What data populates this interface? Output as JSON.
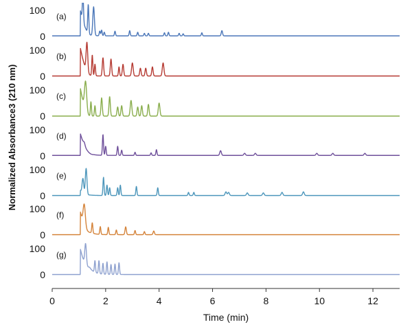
{
  "chart_data": {
    "type": "line",
    "xlabel": "Time (min)",
    "ylabel": "Normalized Absorbance3 (210 nm)",
    "xlim": [
      0,
      13
    ],
    "xticks": [
      0,
      2,
      4,
      6,
      8,
      10,
      12
    ],
    "ylim": [
      0,
      100
    ],
    "yticks": [
      0,
      100
    ],
    "series": [
      {
        "name": "(a)",
        "color": "#4a76b8",
        "baseline": 2,
        "front": {
          "start": 1.05,
          "rise": 100,
          "end": 1.5,
          "tail": 2
        },
        "peaks": [
          [
            1.15,
            110,
            0.02
          ],
          [
            1.35,
            110,
            0.02
          ],
          [
            1.55,
            110,
            0.03
          ],
          [
            1.78,
            18,
            0.02
          ],
          [
            1.85,
            22,
            0.02
          ],
          [
            1.95,
            14,
            0.02
          ],
          [
            2.35,
            18,
            0.02
          ],
          [
            2.9,
            20,
            0.02
          ],
          [
            3.2,
            14,
            0.02
          ],
          [
            3.45,
            10,
            0.02
          ],
          [
            3.6,
            10,
            0.02
          ],
          [
            4.2,
            12,
            0.02
          ],
          [
            4.35,
            14,
            0.02
          ],
          [
            4.75,
            10,
            0.02
          ],
          [
            4.9,
            8,
            0.02
          ],
          [
            5.6,
            12,
            0.02
          ],
          [
            6.35,
            20,
            0.025
          ]
        ]
      },
      {
        "name": "(b)",
        "color": "#b53a32",
        "baseline": 1,
        "front": {
          "start": 1.05,
          "rise": 110,
          "end": 1.5,
          "tail": 1
        },
        "peaks": [
          [
            1.3,
            110,
            0.03
          ],
          [
            1.5,
            80,
            0.02
          ],
          [
            1.6,
            45,
            0.02
          ],
          [
            1.9,
            70,
            0.025
          ],
          [
            2.2,
            65,
            0.025
          ],
          [
            2.5,
            35,
            0.02
          ],
          [
            2.65,
            45,
            0.025
          ],
          [
            3.0,
            50,
            0.03
          ],
          [
            3.3,
            30,
            0.025
          ],
          [
            3.5,
            30,
            0.025
          ],
          [
            3.75,
            35,
            0.025
          ],
          [
            4.15,
            50,
            0.03
          ]
        ]
      },
      {
        "name": "(c)",
        "color": "#89ad4c",
        "baseline": 0,
        "front": {
          "start": 1.05,
          "rise": 110,
          "end": 1.45,
          "tail": 0
        },
        "peaks": [
          [
            1.25,
            110,
            0.04
          ],
          [
            1.45,
            55,
            0.02
          ],
          [
            1.6,
            40,
            0.02
          ],
          [
            1.85,
            70,
            0.025
          ],
          [
            2.15,
            75,
            0.025
          ],
          [
            2.45,
            35,
            0.025
          ],
          [
            2.6,
            40,
            0.025
          ],
          [
            2.95,
            60,
            0.03
          ],
          [
            3.2,
            35,
            0.025
          ],
          [
            3.35,
            40,
            0.025
          ],
          [
            3.6,
            45,
            0.025
          ],
          [
            4.0,
            50,
            0.03
          ]
        ]
      },
      {
        "name": "(d)",
        "color": "#6e4f9a",
        "baseline": 2,
        "front": {
          "start": 1.05,
          "rise": 85,
          "end": 1.55,
          "tail": 3
        },
        "peaks": [
          [
            1.2,
            10,
            0.03
          ],
          [
            1.9,
            80,
            0.02
          ],
          [
            2.0,
            35,
            0.02
          ],
          [
            2.45,
            35,
            0.02
          ],
          [
            2.6,
            20,
            0.02
          ],
          [
            3.1,
            12,
            0.02
          ],
          [
            3.7,
            10,
            0.02
          ],
          [
            3.9,
            22,
            0.02
          ],
          [
            6.3,
            18,
            0.03
          ],
          [
            7.2,
            8,
            0.03
          ],
          [
            7.6,
            8,
            0.03
          ],
          [
            9.9,
            8,
            0.03
          ],
          [
            10.5,
            8,
            0.03
          ],
          [
            11.7,
            8,
            0.03
          ]
        ]
      },
      {
        "name": "(e)",
        "color": "#4c96bb",
        "baseline": 1,
        "front": {
          "start": 1.05,
          "rise": 20,
          "end": 1.4,
          "tail": 2
        },
        "peaks": [
          [
            1.15,
            55,
            0.03
          ],
          [
            1.27,
            100,
            0.03
          ],
          [
            1.92,
            70,
            0.02
          ],
          [
            2.05,
            40,
            0.02
          ],
          [
            2.15,
            30,
            0.02
          ],
          [
            2.45,
            30,
            0.02
          ],
          [
            2.55,
            40,
            0.02
          ],
          [
            3.15,
            35,
            0.02
          ],
          [
            3.95,
            30,
            0.02
          ],
          [
            5.1,
            12,
            0.02
          ],
          [
            5.3,
            12,
            0.02
          ],
          [
            6.5,
            14,
            0.03
          ],
          [
            6.6,
            12,
            0.03
          ],
          [
            7.3,
            10,
            0.03
          ],
          [
            7.9,
            10,
            0.03
          ],
          [
            8.6,
            12,
            0.03
          ],
          [
            9.4,
            14,
            0.03
          ]
        ]
      },
      {
        "name": "(f)",
        "color": "#d4833a",
        "baseline": 1,
        "front": {
          "start": 1.05,
          "rise": 90,
          "end": 1.45,
          "tail": 8
        },
        "peaks": [
          [
            1.2,
            80,
            0.04
          ],
          [
            1.5,
            40,
            0.02
          ],
          [
            1.8,
            30,
            0.02
          ],
          [
            2.1,
            28,
            0.02
          ],
          [
            2.4,
            18,
            0.02
          ],
          [
            2.75,
            30,
            0.025
          ],
          [
            3.1,
            16,
            0.02
          ],
          [
            3.45,
            12,
            0.02
          ],
          [
            3.8,
            14,
            0.025
          ]
        ]
      },
      {
        "name": "(g)",
        "color": "#8ea1cf",
        "baseline": 1,
        "front": {
          "start": 1.05,
          "rise": 100,
          "end": 1.4,
          "tail": 28
        },
        "peaks": [
          [
            1.25,
            80,
            0.03
          ],
          [
            1.6,
            45,
            0.02
          ],
          [
            1.75,
            50,
            0.02
          ],
          [
            1.9,
            42,
            0.02
          ],
          [
            2.05,
            48,
            0.02
          ],
          [
            2.2,
            38,
            0.02
          ],
          [
            2.35,
            40,
            0.02
          ],
          [
            2.5,
            45,
            0.02
          ]
        ]
      }
    ]
  }
}
